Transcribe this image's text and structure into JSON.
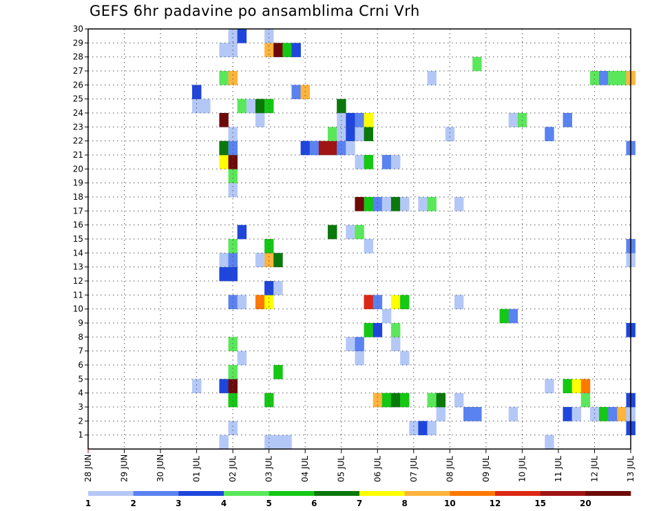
{
  "chart_data": {
    "type": "heatmap",
    "title": "GEFS 6hr padavine po ansamblima Crni Vrh",
    "x_tick_labels": [
      "28 JUN",
      "29 JUN",
      "30 JUN",
      "01 JUL",
      "02 JUL",
      "03 JUL",
      "04 JUL",
      "05 JUL",
      "06 JUL",
      "07 JUL",
      "08 JUL",
      "09 JUL",
      "10 JUL",
      "11 JUL",
      "12 JUL",
      "13 JUL"
    ],
    "x_range": [
      0,
      15
    ],
    "x_step": 0.25,
    "y_tick_labels": [
      "1",
      "2",
      "3",
      "4",
      "5",
      "6",
      "7",
      "8",
      "9",
      "10",
      "11",
      "12",
      "13",
      "14",
      "15",
      "16",
      "17",
      "18",
      "19",
      "20",
      "21",
      "22",
      "23",
      "24",
      "25",
      "26",
      "27",
      "28",
      "29",
      "30"
    ],
    "y_range": [
      0,
      30
    ],
    "grid": true,
    "legend": {
      "placement": "bottom",
      "colors": [
        "#b4c8f8",
        "#5a82f0",
        "#1e46dc",
        "#5ae85a",
        "#14c814",
        "#0a780a",
        "#ffff00",
        "#ffb43c",
        "#ff7800",
        "#dc2814",
        "#a01414",
        "#6e0a0a"
      ],
      "labels": [
        "1",
        "2",
        "3",
        "4",
        "5",
        "6",
        "7",
        "8",
        "10",
        "12",
        "15",
        "20"
      ]
    },
    "cells": [
      {
        "x": 3.75,
        "y": 0,
        "c": 0
      },
      {
        "x": 5.0,
        "y": 0,
        "c": 0
      },
      {
        "x": 5.25,
        "y": 0,
        "c": 0
      },
      {
        "x": 5.5,
        "y": 0,
        "c": 0
      },
      {
        "x": 12.75,
        "y": 0,
        "c": 0
      },
      {
        "x": 4.0,
        "y": 1,
        "c": 0
      },
      {
        "x": 9.0,
        "y": 1,
        "c": 0
      },
      {
        "x": 9.25,
        "y": 1,
        "c": 2
      },
      {
        "x": 9.5,
        "y": 1,
        "c": 0
      },
      {
        "x": 15.0,
        "y": 1,
        "c": 2
      },
      {
        "x": 9.75,
        "y": 2,
        "c": 0
      },
      {
        "x": 10.5,
        "y": 2,
        "c": 1
      },
      {
        "x": 10.75,
        "y": 2,
        "c": 1
      },
      {
        "x": 11.75,
        "y": 2,
        "c": 0
      },
      {
        "x": 13.25,
        "y": 2,
        "c": 2
      },
      {
        "x": 13.5,
        "y": 2,
        "c": 0
      },
      {
        "x": 14.0,
        "y": 2,
        "c": 0
      },
      {
        "x": 14.25,
        "y": 2,
        "c": 4
      },
      {
        "x": 14.5,
        "y": 2,
        "c": 1
      },
      {
        "x": 14.75,
        "y": 2,
        "c": 7
      },
      {
        "x": 15.0,
        "y": 2,
        "c": 0
      },
      {
        "x": 4.0,
        "y": 3,
        "c": 4
      },
      {
        "x": 5.0,
        "y": 3,
        "c": 4
      },
      {
        "x": 8.0,
        "y": 3,
        "c": 7
      },
      {
        "x": 8.25,
        "y": 3,
        "c": 4
      },
      {
        "x": 8.5,
        "y": 3,
        "c": 5
      },
      {
        "x": 8.75,
        "y": 3,
        "c": 4
      },
      {
        "x": 9.5,
        "y": 3,
        "c": 3
      },
      {
        "x": 9.75,
        "y": 3,
        "c": 5
      },
      {
        "x": 10.25,
        "y": 3,
        "c": 0
      },
      {
        "x": 13.75,
        "y": 3,
        "c": 3
      },
      {
        "x": 15.0,
        "y": 3,
        "c": 2
      },
      {
        "x": 3.0,
        "y": 4,
        "c": 0
      },
      {
        "x": 3.75,
        "y": 4,
        "c": 2
      },
      {
        "x": 4.0,
        "y": 4,
        "c": 11
      },
      {
        "x": 12.75,
        "y": 4,
        "c": 0
      },
      {
        "x": 13.25,
        "y": 4,
        "c": 4
      },
      {
        "x": 13.5,
        "y": 4,
        "c": 6
      },
      {
        "x": 13.75,
        "y": 4,
        "c": 8
      },
      {
        "x": 4.0,
        "y": 5,
        "c": 3
      },
      {
        "x": 5.25,
        "y": 5,
        "c": 4
      },
      {
        "x": 4.25,
        "y": 6,
        "c": 0
      },
      {
        "x": 7.5,
        "y": 6,
        "c": 0
      },
      {
        "x": 8.75,
        "y": 6,
        "c": 0
      },
      {
        "x": 4.0,
        "y": 7,
        "c": 3
      },
      {
        "x": 7.25,
        "y": 7,
        "c": 0
      },
      {
        "x": 7.5,
        "y": 7,
        "c": 1
      },
      {
        "x": 8.5,
        "y": 7,
        "c": 0
      },
      {
        "x": 7.75,
        "y": 8,
        "c": 4
      },
      {
        "x": 8.0,
        "y": 8,
        "c": 2
      },
      {
        "x": 8.5,
        "y": 8,
        "c": 3
      },
      {
        "x": 15.0,
        "y": 8,
        "c": 2
      },
      {
        "x": 8.25,
        "y": 9,
        "c": 0
      },
      {
        "x": 11.5,
        "y": 9,
        "c": 4
      },
      {
        "x": 11.75,
        "y": 9,
        "c": 1
      },
      {
        "x": 4.0,
        "y": 10,
        "c": 1
      },
      {
        "x": 4.25,
        "y": 10,
        "c": 0
      },
      {
        "x": 4.75,
        "y": 10,
        "c": 8
      },
      {
        "x": 5.0,
        "y": 10,
        "c": 6
      },
      {
        "x": 7.75,
        "y": 10,
        "c": 9
      },
      {
        "x": 8.0,
        "y": 10,
        "c": 1
      },
      {
        "x": 8.5,
        "y": 10,
        "c": 6
      },
      {
        "x": 8.75,
        "y": 10,
        "c": 4
      },
      {
        "x": 10.25,
        "y": 10,
        "c": 0
      },
      {
        "x": 5.0,
        "y": 11,
        "c": 2
      },
      {
        "x": 5.25,
        "y": 11,
        "c": 0
      },
      {
        "x": 3.75,
        "y": 12,
        "c": 2
      },
      {
        "x": 4.0,
        "y": 12,
        "c": 2
      },
      {
        "x": 3.75,
        "y": 13,
        "c": 0
      },
      {
        "x": 4.0,
        "y": 13,
        "c": 1
      },
      {
        "x": 4.75,
        "y": 13,
        "c": 0
      },
      {
        "x": 5.0,
        "y": 13,
        "c": 7
      },
      {
        "x": 5.25,
        "y": 13,
        "c": 5
      },
      {
        "x": 15.0,
        "y": 13,
        "c": 0
      },
      {
        "x": 4.0,
        "y": 14,
        "c": 3
      },
      {
        "x": 5.0,
        "y": 14,
        "c": 4
      },
      {
        "x": 7.75,
        "y": 14,
        "c": 0
      },
      {
        "x": 15.0,
        "y": 14,
        "c": 1
      },
      {
        "x": 4.25,
        "y": 15,
        "c": 2
      },
      {
        "x": 6.75,
        "y": 15,
        "c": 5
      },
      {
        "x": 7.25,
        "y": 15,
        "c": 0
      },
      {
        "x": 7.5,
        "y": 15,
        "c": 3
      },
      {
        "x": 7.5,
        "y": 17,
        "c": 11
      },
      {
        "x": 7.75,
        "y": 17,
        "c": 4
      },
      {
        "x": 8.0,
        "y": 17,
        "c": 1
      },
      {
        "x": 8.25,
        "y": 17,
        "c": 0
      },
      {
        "x": 8.5,
        "y": 17,
        "c": 5
      },
      {
        "x": 8.75,
        "y": 17,
        "c": 0
      },
      {
        "x": 9.25,
        "y": 17,
        "c": 0
      },
      {
        "x": 9.5,
        "y": 17,
        "c": 3
      },
      {
        "x": 10.25,
        "y": 17,
        "c": 0
      },
      {
        "x": 4.0,
        "y": 18,
        "c": 0
      },
      {
        "x": 4.0,
        "y": 19,
        "c": 3
      },
      {
        "x": 3.75,
        "y": 20,
        "c": 6
      },
      {
        "x": 4.0,
        "y": 20,
        "c": 11
      },
      {
        "x": 7.5,
        "y": 20,
        "c": 0
      },
      {
        "x": 7.75,
        "y": 20,
        "c": 4
      },
      {
        "x": 8.25,
        "y": 20,
        "c": 1
      },
      {
        "x": 8.5,
        "y": 20,
        "c": 0
      },
      {
        "x": 3.75,
        "y": 21,
        "c": 5
      },
      {
        "x": 4.0,
        "y": 21,
        "c": 1
      },
      {
        "x": 6.0,
        "y": 21,
        "c": 2
      },
      {
        "x": 6.25,
        "y": 21,
        "c": 1
      },
      {
        "x": 6.5,
        "y": 21,
        "c": 10
      },
      {
        "x": 6.75,
        "y": 21,
        "c": 10
      },
      {
        "x": 7.0,
        "y": 21,
        "c": 1
      },
      {
        "x": 7.25,
        "y": 21,
        "c": 0
      },
      {
        "x": 15.0,
        "y": 21,
        "c": 1
      },
      {
        "x": 4.0,
        "y": 22,
        "c": 0
      },
      {
        "x": 6.75,
        "y": 22,
        "c": 3
      },
      {
        "x": 7.0,
        "y": 22,
        "c": 0
      },
      {
        "x": 7.25,
        "y": 22,
        "c": 2
      },
      {
        "x": 7.5,
        "y": 22,
        "c": 0
      },
      {
        "x": 7.75,
        "y": 22,
        "c": 5
      },
      {
        "x": 10.0,
        "y": 22,
        "c": 0
      },
      {
        "x": 12.75,
        "y": 22,
        "c": 1
      },
      {
        "x": 3.75,
        "y": 23,
        "c": 11
      },
      {
        "x": 4.75,
        "y": 23,
        "c": 0
      },
      {
        "x": 7.0,
        "y": 23,
        "c": 0
      },
      {
        "x": 7.25,
        "y": 23,
        "c": 2
      },
      {
        "x": 7.5,
        "y": 23,
        "c": 1
      },
      {
        "x": 7.75,
        "y": 23,
        "c": 6
      },
      {
        "x": 11.75,
        "y": 23,
        "c": 0
      },
      {
        "x": 12.0,
        "y": 23,
        "c": 3
      },
      {
        "x": 13.25,
        "y": 23,
        "c": 1
      },
      {
        "x": 3.0,
        "y": 24,
        "c": 0
      },
      {
        "x": 3.25,
        "y": 24,
        "c": 0
      },
      {
        "x": 4.25,
        "y": 24,
        "c": 3
      },
      {
        "x": 4.5,
        "y": 24,
        "c": 0
      },
      {
        "x": 4.75,
        "y": 24,
        "c": 5
      },
      {
        "x": 5.0,
        "y": 24,
        "c": 4
      },
      {
        "x": 7.0,
        "y": 24,
        "c": 5
      },
      {
        "x": 3.0,
        "y": 25,
        "c": 2
      },
      {
        "x": 5.75,
        "y": 25,
        "c": 1
      },
      {
        "x": 6.0,
        "y": 25,
        "c": 7
      },
      {
        "x": 3.75,
        "y": 26,
        "c": 3
      },
      {
        "x": 4.0,
        "y": 26,
        "c": 7
      },
      {
        "x": 9.5,
        "y": 26,
        "c": 0
      },
      {
        "x": 14.0,
        "y": 26,
        "c": 3
      },
      {
        "x": 14.25,
        "y": 26,
        "c": 1
      },
      {
        "x": 14.5,
        "y": 26,
        "c": 3
      },
      {
        "x": 14.75,
        "y": 26,
        "c": 3
      },
      {
        "x": 15.0,
        "y": 26,
        "c": 7
      },
      {
        "x": 10.75,
        "y": 27,
        "c": 3
      },
      {
        "x": 3.75,
        "y": 28,
        "c": 0
      },
      {
        "x": 4.0,
        "y": 28,
        "c": 0
      },
      {
        "x": 5.0,
        "y": 28,
        "c": 7
      },
      {
        "x": 5.25,
        "y": 28,
        "c": 11
      },
      {
        "x": 5.5,
        "y": 28,
        "c": 4
      },
      {
        "x": 5.75,
        "y": 28,
        "c": 2
      },
      {
        "x": 4.0,
        "y": 29,
        "c": 0
      },
      {
        "x": 4.25,
        "y": 29,
        "c": 2
      },
      {
        "x": 5.0,
        "y": 29,
        "c": 0
      }
    ]
  }
}
